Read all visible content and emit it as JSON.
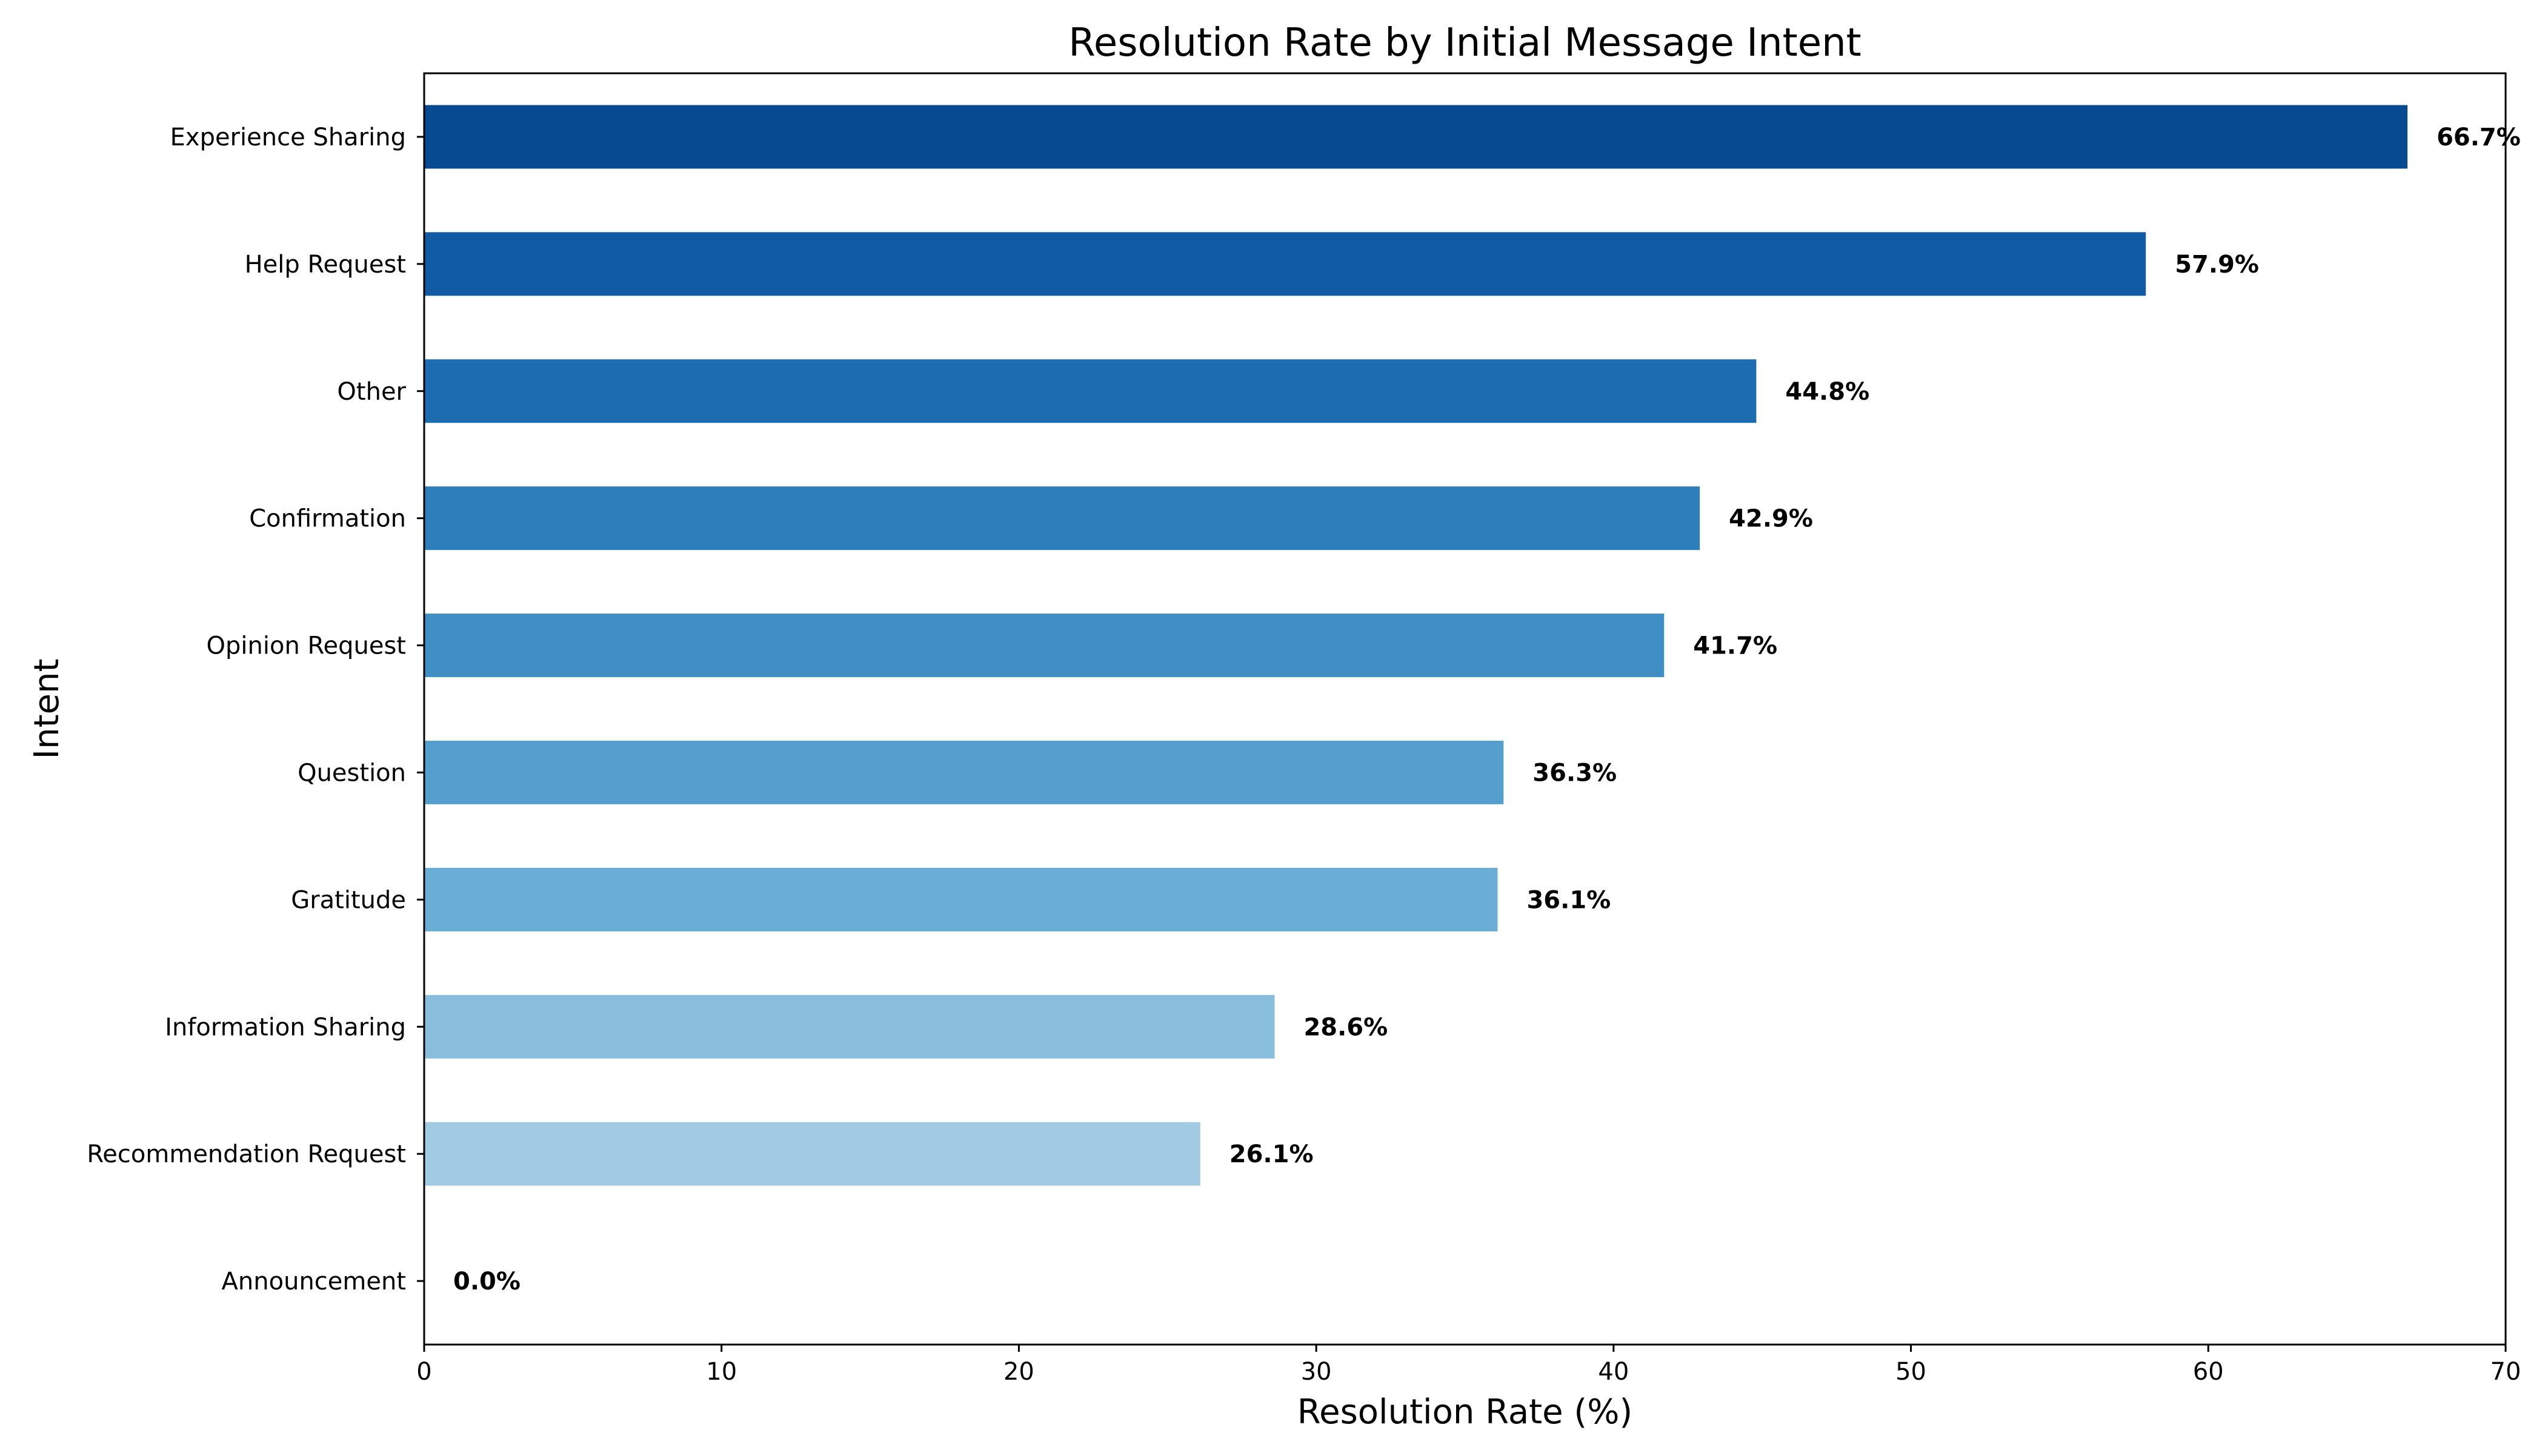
{
  "chart_data": {
    "type": "bar",
    "orientation": "horizontal",
    "title": "Resolution Rate by Initial Message Intent",
    "xlabel": "Resolution Rate (%)",
    "ylabel": "Intent",
    "xlim": [
      0,
      70
    ],
    "xticks": [
      0,
      10,
      20,
      30,
      40,
      50,
      60,
      70
    ],
    "grid": false,
    "categories": [
      "Experience Sharing",
      "Help Request",
      "Other",
      "Confirmation",
      "Opinion Request",
      "Question",
      "Gratitude",
      "Information Sharing",
      "Recommendation Request",
      "Announcement"
    ],
    "values": [
      66.7,
      57.9,
      44.8,
      42.9,
      41.7,
      36.3,
      36.1,
      28.6,
      26.1,
      0.0
    ],
    "value_labels": [
      "66.7%",
      "57.9%",
      "44.8%",
      "42.9%",
      "41.7%",
      "36.3%",
      "36.1%",
      "28.6%",
      "26.1%",
      "0.0%"
    ],
    "colors": [
      "#084a91",
      "#105ba4",
      "#1d6cb1",
      "#2e7ebc",
      "#3f8fc5",
      "#549fcd",
      "#6aaed6",
      "#88bedc",
      "#a1cbe2",
      "#b9d6ea"
    ]
  }
}
